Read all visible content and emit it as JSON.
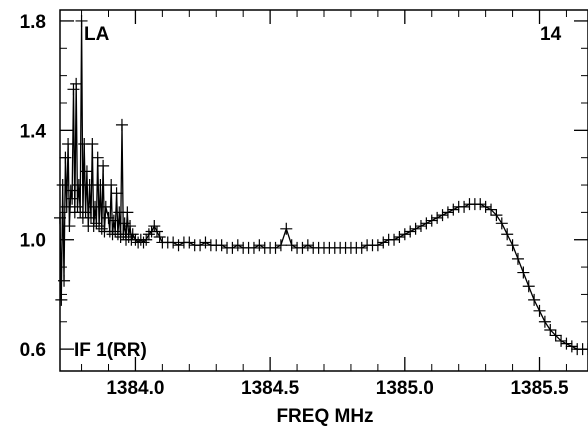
{
  "chart_data": {
    "type": "scatter",
    "title": "",
    "xlabel": "FREQ MHz",
    "ylabel": "",
    "xlim": [
      1383.72,
      1385.68
    ],
    "ylim": [
      0.52,
      1.84
    ],
    "x_ticks": [
      1384.0,
      1384.5,
      1385.0,
      1385.5
    ],
    "x_tick_labels": [
      "1384.0",
      "1384.5",
      "1385.0",
      "1385.5"
    ],
    "y_ticks": [
      0.6,
      1.0,
      1.4,
      1.8
    ],
    "y_tick_labels": [
      "0.6",
      "1.0",
      "1.4",
      "1.8"
    ],
    "marker": "plus",
    "grid": false,
    "annotations": {
      "top_left": "LA",
      "top_right": "14",
      "bottom_left": "IF 1(RR)"
    },
    "series": [
      {
        "points": [
          [
            1383.72,
            1.08
          ],
          [
            1383.725,
            0.78
          ],
          [
            1383.73,
            1.2
          ],
          [
            1383.735,
            0.85
          ],
          [
            1383.74,
            1.3
          ],
          [
            1383.745,
            1.12
          ],
          [
            1383.75,
            1.35
          ],
          [
            1383.755,
            1.05
          ],
          [
            1383.76,
            1.18
          ],
          [
            1383.765,
            1.15
          ],
          [
            1383.77,
            1.55
          ],
          [
            1383.775,
            1.1
          ],
          [
            1383.78,
            1.57
          ],
          [
            1383.785,
            1.12
          ],
          [
            1383.79,
            1.2
          ],
          [
            1383.795,
            1.1
          ],
          [
            1383.8,
            1.8
          ],
          [
            1383.805,
            1.08
          ],
          [
            1383.81,
            1.35
          ],
          [
            1383.815,
            1.1
          ],
          [
            1383.82,
            1.25
          ],
          [
            1383.825,
            1.05
          ],
          [
            1383.83,
            1.2
          ],
          [
            1383.835,
            1.08
          ],
          [
            1383.84,
            1.35
          ],
          [
            1383.845,
            1.05
          ],
          [
            1383.85,
            1.12
          ],
          [
            1383.855,
            1.06
          ],
          [
            1383.86,
            1.3
          ],
          [
            1383.865,
            1.05
          ],
          [
            1383.87,
            1.2
          ],
          [
            1383.875,
            1.04
          ],
          [
            1383.88,
            1.27
          ],
          [
            1383.885,
            1.03
          ],
          [
            1383.89,
            1.12
          ],
          [
            1383.9,
            1.08
          ],
          [
            1383.905,
            1.03
          ],
          [
            1383.91,
            1.2
          ],
          [
            1383.915,
            1.02
          ],
          [
            1383.92,
            1.07
          ],
          [
            1383.925,
            1.03
          ],
          [
            1383.93,
            1.17
          ],
          [
            1383.935,
            1.02
          ],
          [
            1383.94,
            1.1
          ],
          [
            1383.945,
            1.01
          ],
          [
            1383.95,
            1.42
          ],
          [
            1383.955,
            1.02
          ],
          [
            1383.96,
            1.06
          ],
          [
            1383.965,
            1.0
          ],
          [
            1383.97,
            1.1
          ],
          [
            1383.975,
            1.01
          ],
          [
            1383.98,
            1.05
          ],
          [
            1383.985,
            1.0
          ],
          [
            1383.99,
            1.02
          ],
          [
            1384.0,
            1.0
          ],
          [
            1384.01,
            0.99
          ],
          [
            1384.02,
            1.0
          ],
          [
            1384.03,
            0.99
          ],
          [
            1384.04,
            1.0
          ],
          [
            1384.05,
            1.02
          ],
          [
            1384.06,
            1.03
          ],
          [
            1384.07,
            1.05
          ],
          [
            1384.08,
            1.03
          ],
          [
            1384.09,
            1.01
          ],
          [
            1384.1,
            0.99
          ],
          [
            1384.12,
            0.99
          ],
          [
            1384.14,
            0.99
          ],
          [
            1384.16,
            0.98
          ],
          [
            1384.18,
            0.99
          ],
          [
            1384.2,
            0.99
          ],
          [
            1384.22,
            0.98
          ],
          [
            1384.24,
            0.98
          ],
          [
            1384.26,
            0.99
          ],
          [
            1384.28,
            0.98
          ],
          [
            1384.3,
            0.98
          ],
          [
            1384.32,
            0.98
          ],
          [
            1384.34,
            0.97
          ],
          [
            1384.36,
            0.97
          ],
          [
            1384.38,
            0.98
          ],
          [
            1384.4,
            0.97
          ],
          [
            1384.42,
            0.97
          ],
          [
            1384.44,
            0.97
          ],
          [
            1384.46,
            0.98
          ],
          [
            1384.48,
            0.97
          ],
          [
            1384.5,
            0.97
          ],
          [
            1384.52,
            0.97
          ],
          [
            1384.54,
            0.98
          ],
          [
            1384.56,
            1.04
          ],
          [
            1384.58,
            0.98
          ],
          [
            1384.6,
            0.97
          ],
          [
            1384.62,
            0.97
          ],
          [
            1384.64,
            0.98
          ],
          [
            1384.66,
            0.97
          ],
          [
            1384.68,
            0.97
          ],
          [
            1384.7,
            0.97
          ],
          [
            1384.72,
            0.97
          ],
          [
            1384.74,
            0.97
          ],
          [
            1384.76,
            0.97
          ],
          [
            1384.78,
            0.97
          ],
          [
            1384.8,
            0.97
          ],
          [
            1384.82,
            0.97
          ],
          [
            1384.84,
            0.97
          ],
          [
            1384.86,
            0.98
          ],
          [
            1384.88,
            0.98
          ],
          [
            1384.9,
            0.98
          ],
          [
            1384.92,
            0.99
          ],
          [
            1384.94,
            1.0
          ],
          [
            1384.96,
            1.0
          ],
          [
            1384.98,
            1.01
          ],
          [
            1385.0,
            1.02
          ],
          [
            1385.02,
            1.03
          ],
          [
            1385.04,
            1.04
          ],
          [
            1385.06,
            1.05
          ],
          [
            1385.08,
            1.06
          ],
          [
            1385.1,
            1.07
          ],
          [
            1385.12,
            1.08
          ],
          [
            1385.14,
            1.09
          ],
          [
            1385.16,
            1.1
          ],
          [
            1385.18,
            1.11
          ],
          [
            1385.2,
            1.12
          ],
          [
            1385.22,
            1.12
          ],
          [
            1385.24,
            1.13
          ],
          [
            1385.26,
            1.13
          ],
          [
            1385.28,
            1.13
          ],
          [
            1385.3,
            1.12
          ],
          [
            1385.32,
            1.11
          ],
          [
            1385.34,
            1.09
          ],
          [
            1385.36,
            1.06
          ],
          [
            1385.38,
            1.02
          ],
          [
            1385.4,
            0.98
          ],
          [
            1385.42,
            0.93
          ],
          [
            1385.44,
            0.88
          ],
          [
            1385.46,
            0.83
          ],
          [
            1385.48,
            0.78
          ],
          [
            1385.5,
            0.74
          ],
          [
            1385.52,
            0.7
          ],
          [
            1385.54,
            0.67
          ],
          [
            1385.56,
            0.65
          ],
          [
            1385.58,
            0.63
          ],
          [
            1385.6,
            0.62
          ],
          [
            1385.62,
            0.61
          ],
          [
            1385.64,
            0.6
          ],
          [
            1385.66,
            0.6
          ],
          [
            1385.68,
            0.6
          ]
        ]
      }
    ]
  }
}
